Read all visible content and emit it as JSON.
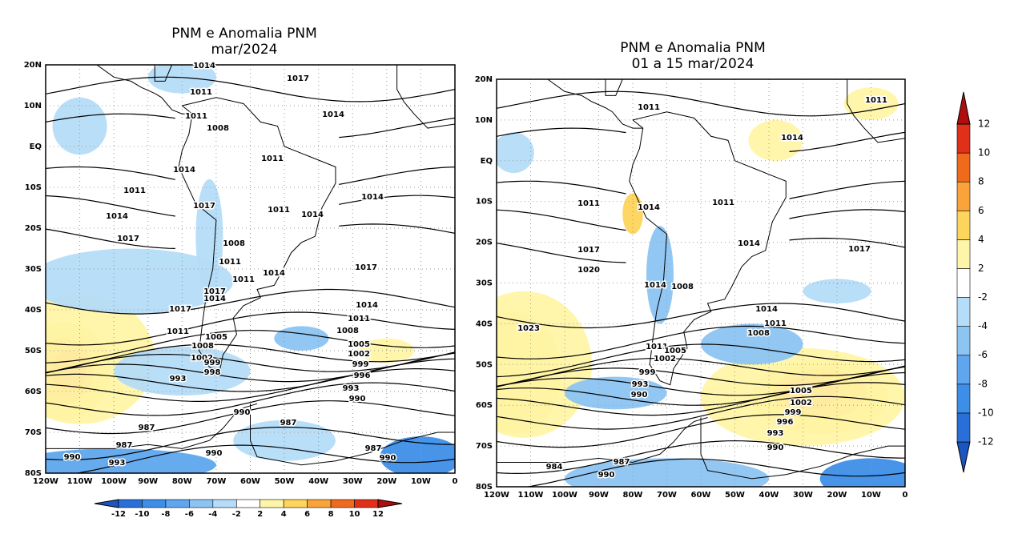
{
  "panels": [
    {
      "title": [
        "PNM e Anomalia PNM",
        "mar/2024"
      ],
      "lat_labels": [
        "20N",
        "10N",
        "EQ",
        "10S",
        "20S",
        "30S",
        "40S",
        "50S",
        "60S",
        "70S",
        "80S"
      ],
      "lon_labels": [
        "120W",
        "110W",
        "100W",
        "90W",
        "80W",
        "70W",
        "60W",
        "50W",
        "40W",
        "30W",
        "20W",
        "10W",
        "0"
      ],
      "contour_labels": [
        "1014",
        "1017",
        "1011",
        "1014",
        "1011",
        "1008",
        "1011",
        "1014",
        "1011",
        "1014",
        "1011",
        "1017",
        "1014",
        "1014",
        "1017",
        "1008",
        "1011",
        "1017",
        "1014",
        "1011",
        "1017",
        "1014",
        "1014",
        "1017",
        "1011",
        "1011",
        "1008",
        "1005",
        "1008",
        "1005",
        "1002",
        "1002",
        "999",
        "999",
        "998",
        "996",
        "993",
        "993",
        "990",
        "990",
        "987",
        "987",
        "987",
        "990",
        "987",
        "990",
        "990",
        "993"
      ]
    },
    {
      "title": [
        "PNM e Anomalia PNM",
        "01 a 15 mar/2024"
      ],
      "lat_labels": [
        "20N",
        "10N",
        "EQ",
        "10S",
        "20S",
        "30S",
        "40S",
        "50S",
        "60S",
        "70S",
        "80S"
      ],
      "lon_labels": [
        "120W",
        "110W",
        "100W",
        "90W",
        "80W",
        "70W",
        "60W",
        "50W",
        "40W",
        "30W",
        "20W",
        "10W",
        "0"
      ],
      "contour_labels": [
        "1011",
        "1011",
        "1014",
        "1011",
        "1014",
        "1011",
        "1017",
        "1014",
        "1017",
        "1020",
        "1014",
        "1008",
        "1014",
        "1011",
        "1023",
        "1008",
        "1011",
        "1005",
        "1002",
        "999",
        "993",
        "990",
        "1005",
        "1002",
        "999",
        "996",
        "993",
        "990",
        "987",
        "984",
        "990"
      ]
    }
  ],
  "colorbar": {
    "labels": [
      -12,
      -10,
      -8,
      -6,
      -4,
      -2,
      2,
      4,
      6,
      8,
      10,
      12
    ],
    "colors": [
      "#1a55c0",
      "#2a6ed8",
      "#3d8ee8",
      "#5fa6ee",
      "#8cc4f2",
      "#b5dcf8",
      "#ffffff",
      "#fff5a8",
      "#fdd45c",
      "#f9a33a",
      "#f06a1e",
      "#e0301a",
      "#b00d0d"
    ]
  }
}
